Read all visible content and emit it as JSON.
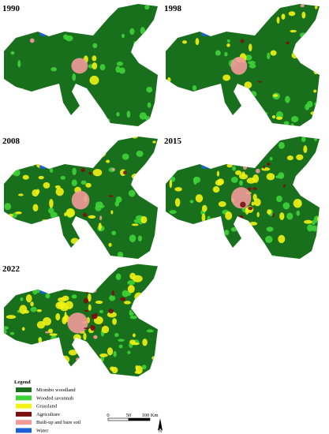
{
  "maps": [
    {
      "year": "1990"
    },
    {
      "year": "1998"
    },
    {
      "year": "2008"
    },
    {
      "year": "2015"
    },
    {
      "year": "2022"
    }
  ],
  "legend": {
    "title": "Legend",
    "items": [
      {
        "label": "Miombo woodland",
        "color": "#19701c"
      },
      {
        "label": "Wooded savannah",
        "color": "#3fd33a"
      },
      {
        "label": "Grassland",
        "color": "#f2f214"
      },
      {
        "label": "Agriculture",
        "color": "#7a1010"
      },
      {
        "label": "Built-up and bare soil",
        "color": "#f29a9a"
      },
      {
        "label": "Water",
        "color": "#1f5fd6"
      }
    ]
  },
  "scale_bar": {
    "labels": [
      "0",
      "50",
      "100 Km"
    ]
  },
  "north": "N"
}
